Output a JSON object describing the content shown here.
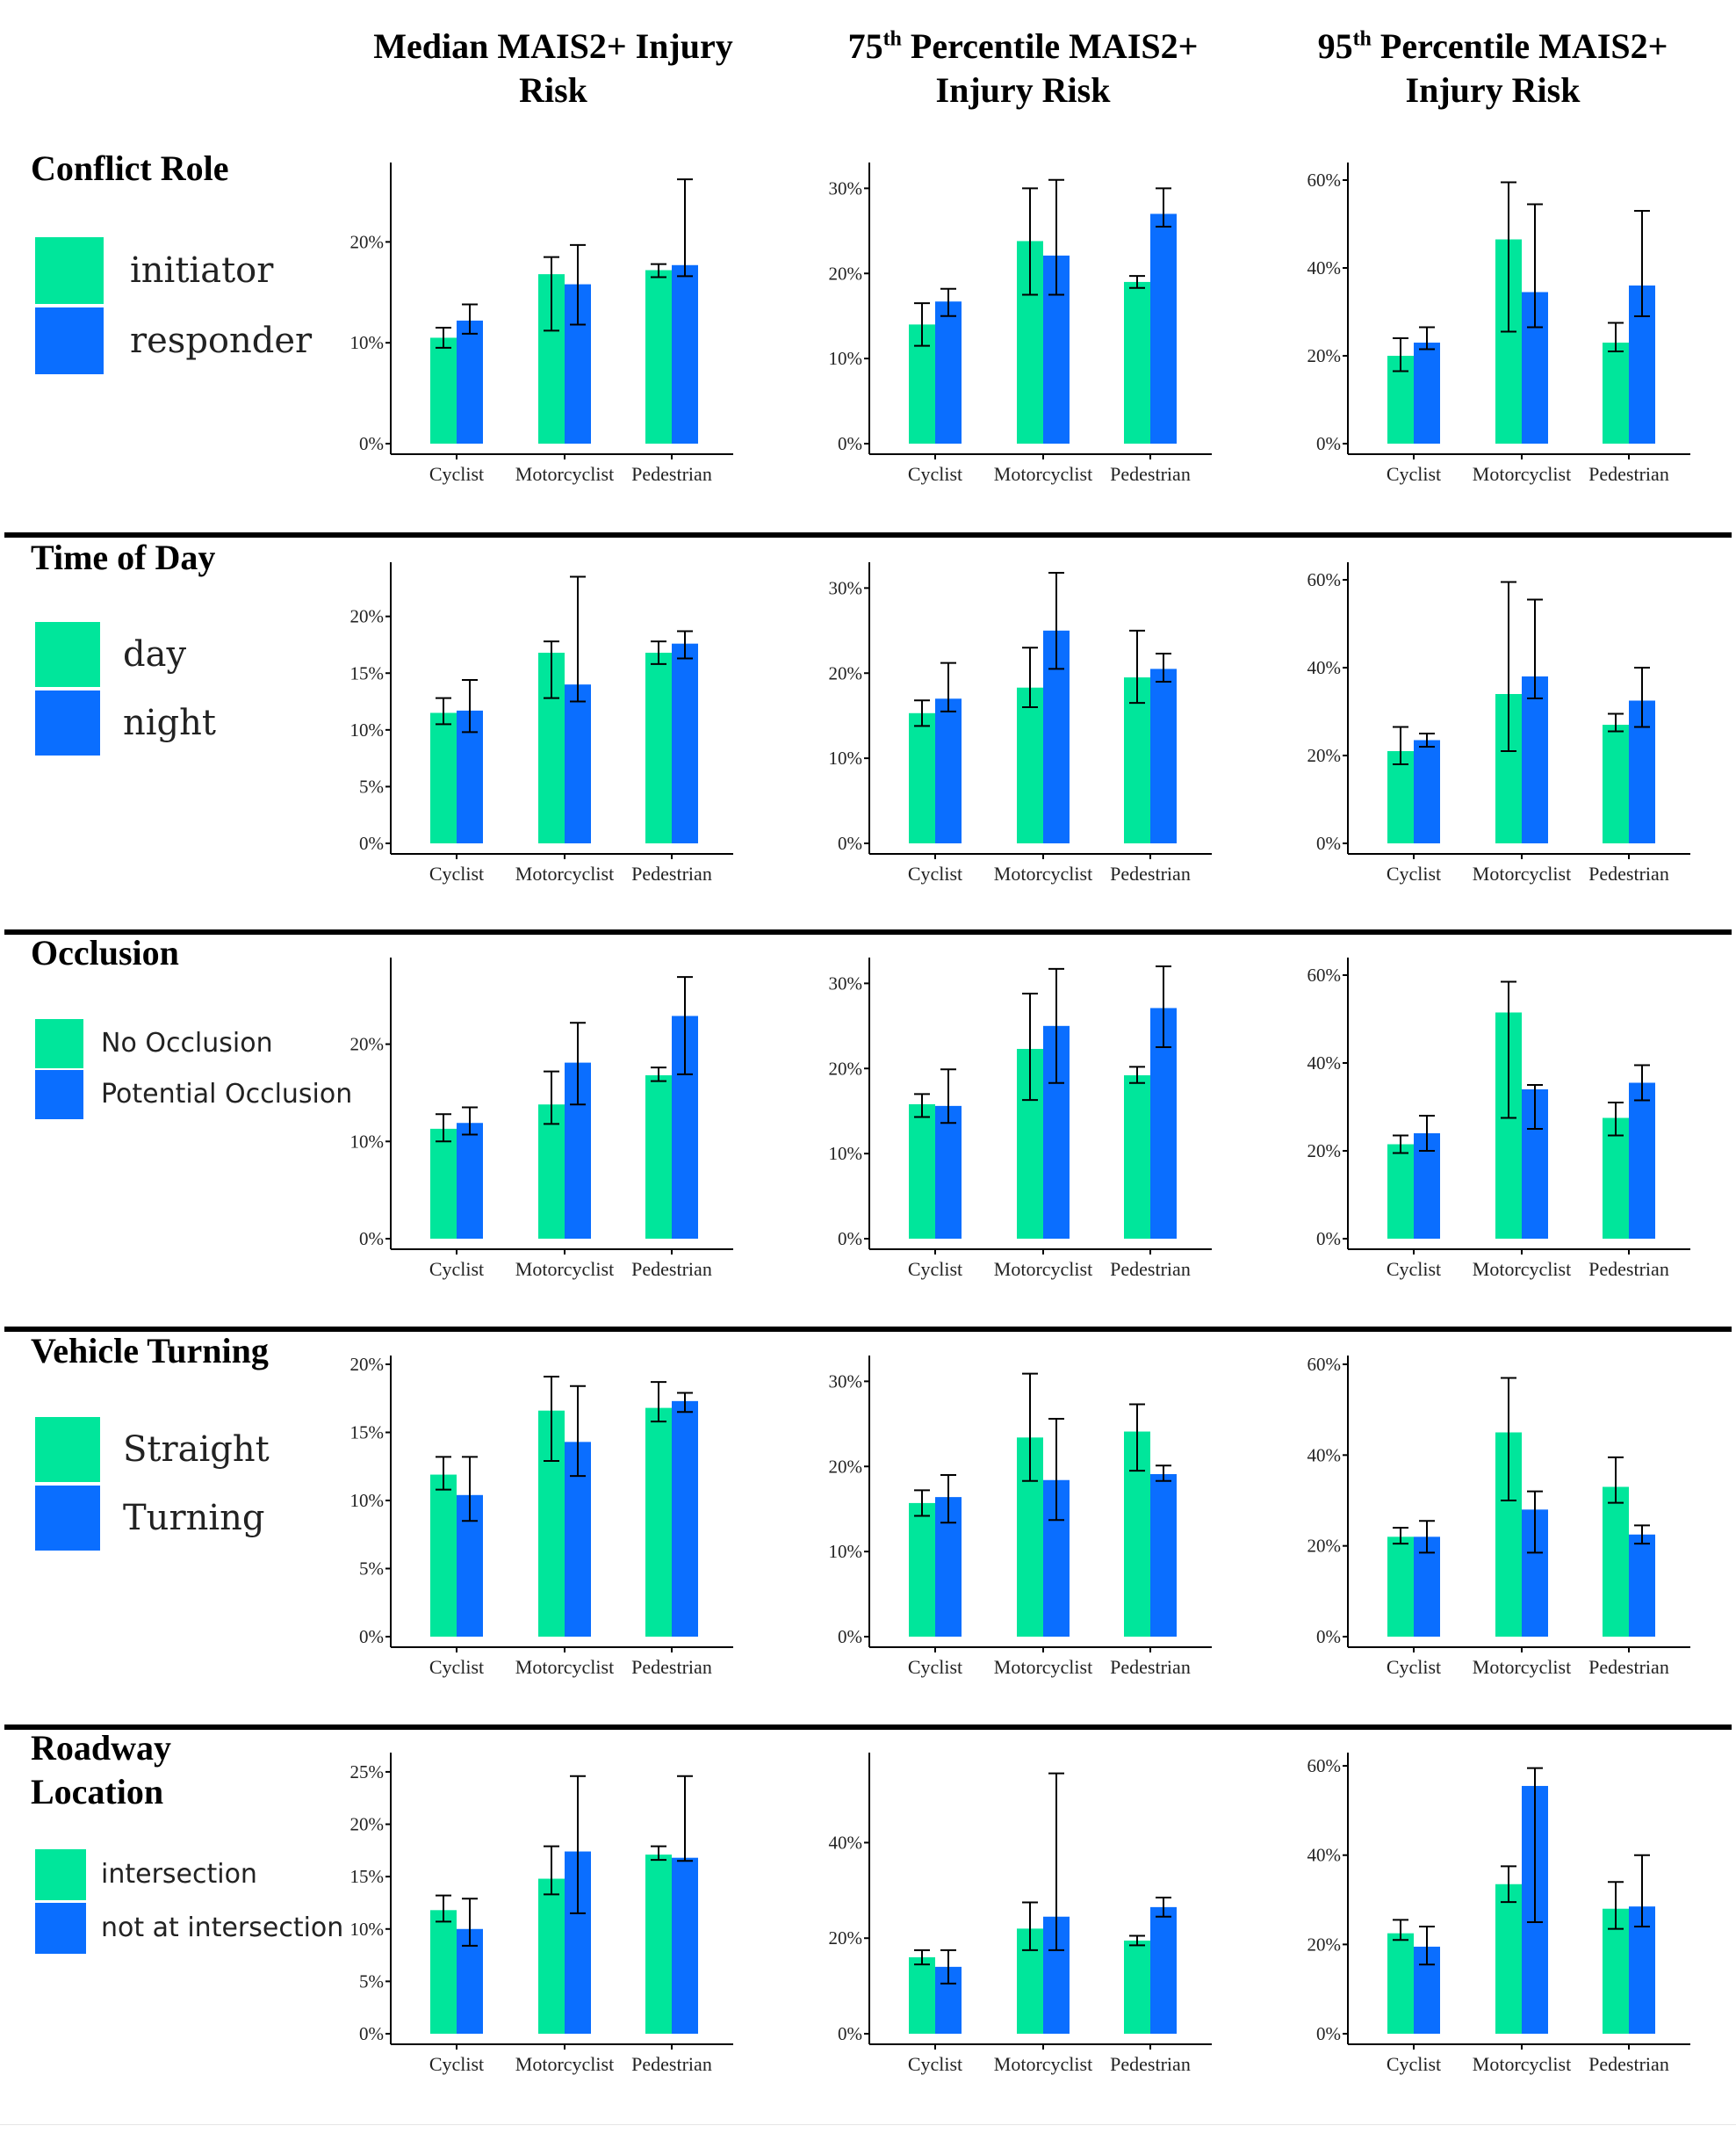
{
  "colors": {
    "series_a": "#00E69B",
    "series_b": "#0A6EFF",
    "axis": "#000000",
    "errorbar": "#000000"
  },
  "column_headers": [
    {
      "text": "Median MAIS2+ Injury Risk"
    },
    {
      "base": "75",
      "sup": "th",
      "rest": " Percentile MAIS2+ Injury Risk"
    },
    {
      "base": "95",
      "sup": "th",
      "rest": " Percentile MAIS2+ Injury Risk"
    }
  ],
  "chart_data": [
    {
      "row_title": "Conflict Role",
      "legend": [
        "initiator",
        "responder"
      ],
      "charts": [
        {
          "type": "bar",
          "categories": [
            "Cyclist",
            "Motorcyclist",
            "Pedestrian"
          ],
          "ylim": [
            0,
            27
          ],
          "yticks": [
            0,
            10,
            20
          ],
          "ytick_labels": [
            "0%",
            "10%",
            "20%"
          ],
          "series": [
            {
              "name": "initiator",
              "values": [
                10.5,
                16.8,
                17.2
              ],
              "err_low": [
                9.5,
                11.2,
                16.5
              ],
              "err_high": [
                11.5,
                18.5,
                17.8
              ]
            },
            {
              "name": "responder",
              "values": [
                12.2,
                15.8,
                17.7
              ],
              "err_low": [
                10.9,
                11.8,
                16.6
              ],
              "err_high": [
                13.8,
                19.7,
                26.2
              ]
            }
          ]
        },
        {
          "type": "bar",
          "categories": [
            "Cyclist",
            "Motorcyclist",
            "Pedestrian"
          ],
          "ylim": [
            0,
            32
          ],
          "yticks": [
            0,
            10,
            20,
            30
          ],
          "ytick_labels": [
            "0%",
            "10%",
            "20%",
            "30%"
          ],
          "series": [
            {
              "name": "initiator",
              "values": [
                14,
                23.8,
                19
              ],
              "err_low": [
                11.5,
                17.5,
                18.3
              ],
              "err_high": [
                16.5,
                30,
                19.7
              ]
            },
            {
              "name": "responder",
              "values": [
                16.7,
                22.1,
                27
              ],
              "err_low": [
                15,
                17.5,
                25.5
              ],
              "err_high": [
                18.2,
                31,
                30
              ]
            }
          ]
        },
        {
          "type": "bar",
          "categories": [
            "Cyclist",
            "Motorcyclist",
            "Pedestrian"
          ],
          "ylim": [
            0,
            62
          ],
          "yticks": [
            0,
            20,
            40,
            60
          ],
          "ytick_labels": [
            "0%",
            "20%",
            "40%",
            "60%"
          ],
          "series": [
            {
              "name": "initiator",
              "values": [
                20,
                46.5,
                23
              ],
              "err_low": [
                16.5,
                25.5,
                21
              ],
              "err_high": [
                24,
                59.5,
                27.5
              ]
            },
            {
              "name": "responder",
              "values": [
                23,
                34.5,
                36
              ],
              "err_low": [
                21.5,
                26.5,
                29
              ],
              "err_high": [
                26.5,
                54.5,
                53
              ]
            }
          ]
        }
      ]
    },
    {
      "row_title": "Time of Day",
      "legend": [
        "day",
        "night"
      ],
      "charts": [
        {
          "type": "bar",
          "categories": [
            "Cyclist",
            "Motorcyclist",
            "Pedestrian"
          ],
          "ylim": [
            0,
            24
          ],
          "yticks": [
            0,
            5,
            10,
            15,
            20
          ],
          "ytick_labels": [
            "0%",
            "5%",
            "10%",
            "15%",
            "20%"
          ],
          "series": [
            {
              "name": "day",
              "values": [
                11.5,
                16.8,
                16.8
              ],
              "err_low": [
                10.5,
                12.8,
                15.8
              ],
              "err_high": [
                12.8,
                17.8,
                17.8
              ]
            },
            {
              "name": "night",
              "values": [
                11.7,
                14,
                17.6
              ],
              "err_low": [
                9.8,
                12.5,
                16.3
              ],
              "err_high": [
                14.4,
                23.5,
                18.7
              ]
            }
          ]
        },
        {
          "type": "bar",
          "categories": [
            "Cyclist",
            "Motorcyclist",
            "Pedestrian"
          ],
          "ylim": [
            0,
            32
          ],
          "yticks": [
            0,
            10,
            20,
            30
          ],
          "ytick_labels": [
            "0%",
            "10%",
            "20%",
            "30%"
          ],
          "series": [
            {
              "name": "day",
              "values": [
                15.3,
                18.3,
                19.5
              ],
              "err_low": [
                13.8,
                16,
                16.5
              ],
              "err_high": [
                16.8,
                23,
                25
              ]
            },
            {
              "name": "night",
              "values": [
                17,
                25,
                20.5
              ],
              "err_low": [
                15.5,
                20.5,
                19
              ],
              "err_high": [
                21.2,
                31.8,
                22.3
              ]
            }
          ]
        },
        {
          "type": "bar",
          "categories": [
            "Cyclist",
            "Motorcyclist",
            "Pedestrian"
          ],
          "ylim": [
            0,
            62
          ],
          "yticks": [
            0,
            20,
            40,
            60
          ],
          "ytick_labels": [
            "0%",
            "20%",
            "40%",
            "60%"
          ],
          "series": [
            {
              "name": "day",
              "values": [
                21,
                34,
                27
              ],
              "err_low": [
                18,
                21,
                25.5
              ],
              "err_high": [
                26.5,
                59.5,
                29.5
              ]
            },
            {
              "name": "night",
              "values": [
                23.5,
                38,
                32.5
              ],
              "err_low": [
                22,
                33,
                26.5
              ],
              "err_high": [
                25,
                55.5,
                40
              ]
            }
          ]
        }
      ]
    },
    {
      "row_title": "Occlusion",
      "legend": [
        "No Occlusion",
        "Potential Occlusion"
      ],
      "charts": [
        {
          "type": "bar",
          "categories": [
            "Cyclist",
            "Motorcyclist",
            "Pedestrian"
          ],
          "ylim": [
            0,
            28
          ],
          "yticks": [
            0,
            10,
            20
          ],
          "ytick_labels": [
            "0%",
            "10%",
            "20%"
          ],
          "series": [
            {
              "name": "No Occlusion",
              "values": [
                11.3,
                13.8,
                16.8
              ],
              "err_low": [
                10,
                11.8,
                16.2
              ],
              "err_high": [
                12.8,
                17.2,
                17.6
              ]
            },
            {
              "name": "Potential Occlusion",
              "values": [
                11.9,
                18.1,
                22.9
              ],
              "err_low": [
                10.7,
                13.8,
                16.9
              ],
              "err_high": [
                13.5,
                22.2,
                26.9
              ]
            }
          ]
        },
        {
          "type": "bar",
          "categories": [
            "Cyclist",
            "Motorcyclist",
            "Pedestrian"
          ],
          "ylim": [
            0,
            32
          ],
          "yticks": [
            0,
            10,
            20,
            30
          ],
          "ytick_labels": [
            "0%",
            "10%",
            "20%",
            "30%"
          ],
          "series": [
            {
              "name": "No Occlusion",
              "values": [
                15.8,
                22.3,
                19.2
              ],
              "err_low": [
                14.3,
                16.3,
                18.3
              ],
              "err_high": [
                17,
                28.8,
                20.2
              ]
            },
            {
              "name": "Potential Occlusion",
              "values": [
                15.6,
                25,
                27.1
              ],
              "err_low": [
                13.6,
                18.3,
                22.5
              ],
              "err_high": [
                19.9,
                31.7,
                32
              ]
            }
          ]
        },
        {
          "type": "bar",
          "categories": [
            "Cyclist",
            "Motorcyclist",
            "Pedestrian"
          ],
          "ylim": [
            0,
            62
          ],
          "yticks": [
            0,
            20,
            40,
            60
          ],
          "ytick_labels": [
            "0%",
            "20%",
            "40%",
            "60%"
          ],
          "series": [
            {
              "name": "No Occlusion",
              "values": [
                21.5,
                51.5,
                27.5
              ],
              "err_low": [
                19.5,
                27.5,
                23.5
              ],
              "err_high": [
                23.5,
                58.5,
                31
              ]
            },
            {
              "name": "Potential Occlusion",
              "values": [
                24,
                34,
                35.5
              ],
              "err_low": [
                20,
                25,
                31.5
              ],
              "err_high": [
                28,
                35,
                39.5
              ]
            }
          ]
        }
      ]
    },
    {
      "row_title": "Vehicle Turning",
      "legend": [
        "Straight",
        "Turning"
      ],
      "charts": [
        {
          "type": "bar",
          "categories": [
            "Cyclist",
            "Motorcyclist",
            "Pedestrian"
          ],
          "ylim": [
            0,
            20
          ],
          "yticks": [
            0,
            5,
            10,
            15,
            20
          ],
          "ytick_labels": [
            "0%",
            "5%",
            "10%",
            "15%",
            "20%"
          ],
          "series": [
            {
              "name": "Straight",
              "values": [
                11.9,
                16.6,
                16.8
              ],
              "err_low": [
                10.8,
                12.9,
                15.8
              ],
              "err_high": [
                13.2,
                19.1,
                18.7
              ]
            },
            {
              "name": "Turning",
              "values": [
                10.4,
                14.3,
                17.3
              ],
              "err_low": [
                8.5,
                11.8,
                16.5
              ],
              "err_high": [
                13.2,
                18.4,
                17.9
              ]
            }
          ]
        },
        {
          "type": "bar",
          "categories": [
            "Cyclist",
            "Motorcyclist",
            "Pedestrian"
          ],
          "ylim": [
            0,
            32
          ],
          "yticks": [
            0,
            10,
            20,
            30
          ],
          "ytick_labels": [
            "0%",
            "10%",
            "20%",
            "30%"
          ],
          "series": [
            {
              "name": "Straight",
              "values": [
                15.7,
                23.4,
                24.1
              ],
              "err_low": [
                14.2,
                18.3,
                19.5
              ],
              "err_high": [
                17.2,
                30.9,
                27.3
              ]
            },
            {
              "name": "Turning",
              "values": [
                16.4,
                18.4,
                19.1
              ],
              "err_low": [
                13.4,
                13.7,
                18.3
              ],
              "err_high": [
                19,
                25.6,
                20.1
              ]
            }
          ]
        },
        {
          "type": "bar",
          "categories": [
            "Cyclist",
            "Motorcyclist",
            "Pedestrian"
          ],
          "ylim": [
            0,
            60
          ],
          "yticks": [
            0,
            20,
            40,
            60
          ],
          "ytick_labels": [
            "0%",
            "20%",
            "40%",
            "60%"
          ],
          "series": [
            {
              "name": "Straight",
              "values": [
                22,
                45,
                33
              ],
              "err_low": [
                20.5,
                30,
                29.5
              ],
              "err_high": [
                24,
                57,
                39.5
              ]
            },
            {
              "name": "Turning",
              "values": [
                22,
                28,
                22.5
              ],
              "err_low": [
                18.5,
                18.5,
                20.5
              ],
              "err_high": [
                25.5,
                32,
                24.5
              ]
            }
          ]
        }
      ]
    },
    {
      "row_title": "Roadway Location",
      "legend": [
        "intersection",
        "not at intersection"
      ],
      "charts": [
        {
          "type": "bar",
          "categories": [
            "Cyclist",
            "Motorcyclist",
            "Pedestrian"
          ],
          "ylim": [
            0,
            26
          ],
          "yticks": [
            0,
            5,
            10,
            15,
            20,
            25
          ],
          "ytick_labels": [
            "0%",
            "5%",
            "10%",
            "15%",
            "20%",
            "25%"
          ],
          "series": [
            {
              "name": "intersection",
              "values": [
                11.8,
                14.8,
                17.1
              ],
              "err_low": [
                10.7,
                13.3,
                16.6
              ],
              "err_high": [
                13.2,
                17.9,
                17.9
              ]
            },
            {
              "name": "not at intersection",
              "values": [
                10,
                17.4,
                16.8
              ],
              "err_low": [
                8.4,
                11.5,
                16.5
              ],
              "err_high": [
                12.9,
                24.6,
                24.6
              ]
            }
          ]
        },
        {
          "type": "bar",
          "categories": [
            "Cyclist",
            "Motorcyclist",
            "Pedestrian"
          ],
          "ylim": [
            0,
            57
          ],
          "yticks": [
            0,
            20,
            40
          ],
          "ytick_labels": [
            "0%",
            "20%",
            "40%"
          ],
          "series": [
            {
              "name": "intersection",
              "values": [
                16,
                22,
                19.5
              ],
              "err_low": [
                14.5,
                17.5,
                18.5
              ],
              "err_high": [
                17.5,
                27.5,
                20.5
              ]
            },
            {
              "name": "not at intersection",
              "values": [
                14,
                24.5,
                26.5
              ],
              "err_low": [
                10.5,
                17.5,
                24.5
              ],
              "err_high": [
                17.5,
                54.5,
                28.5
              ]
            }
          ]
        },
        {
          "type": "bar",
          "categories": [
            "Cyclist",
            "Motorcyclist",
            "Pedestrian"
          ],
          "ylim": [
            0,
            61
          ],
          "yticks": [
            0,
            20,
            40,
            60
          ],
          "ytick_labels": [
            "0%",
            "20%",
            "40%",
            "60%"
          ],
          "series": [
            {
              "name": "intersection",
              "values": [
                22.5,
                33.5,
                28
              ],
              "err_low": [
                21,
                29.5,
                23.5
              ],
              "err_high": [
                25.5,
                37.5,
                34
              ]
            },
            {
              "name": "not at intersection",
              "values": [
                19.5,
                55.5,
                28.5
              ],
              "err_low": [
                15.5,
                25,
                24
              ],
              "err_high": [
                24,
                59.5,
                40
              ]
            }
          ]
        }
      ]
    }
  ]
}
